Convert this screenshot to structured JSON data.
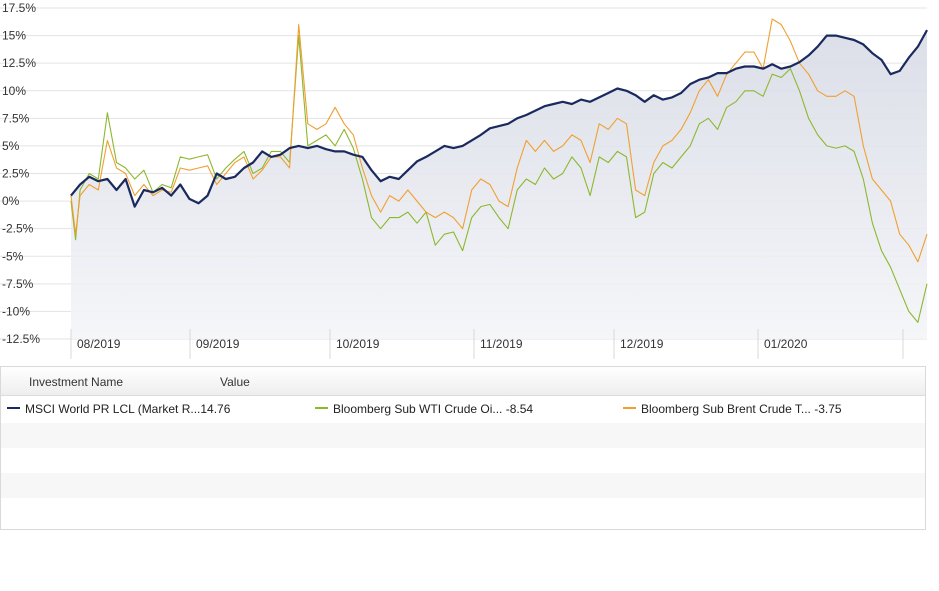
{
  "chart_data": {
    "type": "line",
    "x_ticks": [
      "08/2019",
      "09/2019",
      "10/2019",
      "11/2019",
      "12/2019",
      "01/2020"
    ],
    "y_ticks": [
      "17.5%",
      "15%",
      "12.5%",
      "10%",
      "7.5%",
      "5%",
      "2.5%",
      "0%",
      "-2.5%",
      "-5%",
      "-7.5%",
      "-10%",
      "-12.5%"
    ],
    "ylim": [
      -12.5,
      17.5
    ],
    "grid": true,
    "series": [
      {
        "name": "MSCI World PR LCL (Market R...",
        "color": "#1a2a5e",
        "area_fill": true,
        "points": [
          [
            0,
            0.5
          ],
          [
            2,
            1.5
          ],
          [
            4,
            2.2
          ],
          [
            6,
            1.8
          ],
          [
            8,
            2.0
          ],
          [
            10,
            1.0
          ],
          [
            12,
            2.0
          ],
          [
            14,
            -0.5
          ],
          [
            16,
            1.0
          ],
          [
            18,
            0.8
          ],
          [
            20,
            1.2
          ],
          [
            22,
            0.5
          ],
          [
            24,
            1.5
          ],
          [
            26,
            0.2
          ],
          [
            28,
            -0.2
          ],
          [
            30,
            0.5
          ],
          [
            32,
            2.5
          ],
          [
            34,
            2.0
          ],
          [
            36,
            2.2
          ],
          [
            38,
            3.0
          ],
          [
            40,
            3.5
          ],
          [
            42,
            4.5
          ],
          [
            44,
            4.0
          ],
          [
            46,
            4.2
          ],
          [
            48,
            4.8
          ],
          [
            50,
            5.0
          ],
          [
            52,
            4.8
          ],
          [
            54,
            5.0
          ],
          [
            56,
            4.7
          ],
          [
            58,
            4.5
          ],
          [
            60,
            4.5
          ],
          [
            62,
            4.2
          ],
          [
            64,
            4.0
          ],
          [
            66,
            2.8
          ],
          [
            68,
            1.8
          ],
          [
            70,
            2.2
          ],
          [
            72,
            2.0
          ],
          [
            74,
            2.8
          ],
          [
            76,
            3.6
          ],
          [
            78,
            4.0
          ],
          [
            80,
            4.5
          ],
          [
            82,
            5.0
          ],
          [
            84,
            4.8
          ],
          [
            86,
            5.0
          ],
          [
            88,
            5.5
          ],
          [
            90,
            6.0
          ],
          [
            92,
            6.6
          ],
          [
            94,
            6.8
          ],
          [
            96,
            7.0
          ],
          [
            98,
            7.5
          ],
          [
            100,
            7.8
          ],
          [
            102,
            8.2
          ],
          [
            104,
            8.6
          ],
          [
            106,
            8.8
          ],
          [
            108,
            9.0
          ],
          [
            110,
            8.8
          ],
          [
            112,
            9.2
          ],
          [
            114,
            9.0
          ],
          [
            116,
            9.4
          ],
          [
            118,
            9.8
          ],
          [
            120,
            10.2
          ],
          [
            122,
            10.0
          ],
          [
            124,
            9.6
          ],
          [
            126,
            9.0
          ],
          [
            128,
            9.6
          ],
          [
            130,
            9.2
          ],
          [
            132,
            9.4
          ],
          [
            134,
            9.8
          ],
          [
            136,
            10.6
          ],
          [
            138,
            11.0
          ],
          [
            140,
            11.2
          ],
          [
            142,
            11.6
          ],
          [
            144,
            11.6
          ],
          [
            146,
            12.0
          ],
          [
            148,
            12.2
          ],
          [
            150,
            12.2
          ],
          [
            152,
            12.0
          ],
          [
            154,
            12.4
          ],
          [
            156,
            12.0
          ],
          [
            158,
            12.2
          ],
          [
            160,
            12.6
          ],
          [
            162,
            13.2
          ],
          [
            164,
            14.0
          ],
          [
            166,
            15.0
          ],
          [
            168,
            15.0
          ],
          [
            170,
            14.8
          ],
          [
            172,
            14.6
          ],
          [
            174,
            14.2
          ],
          [
            176,
            13.4
          ],
          [
            178,
            12.8
          ],
          [
            180,
            11.5
          ],
          [
            182,
            11.8
          ],
          [
            184,
            13.0
          ],
          [
            186,
            14.0
          ],
          [
            188,
            15.5
          ]
        ]
      },
      {
        "name": "Bloomberg Sub WTI Crude Oi...",
        "color": "#8cb82e",
        "area_fill": false,
        "points": [
          [
            0,
            0
          ],
          [
            1,
            -3.5
          ],
          [
            2,
            1.0
          ],
          [
            4,
            2.5
          ],
          [
            6,
            2.0
          ],
          [
            8,
            8.0
          ],
          [
            10,
            3.5
          ],
          [
            12,
            3.0
          ],
          [
            14,
            2.0
          ],
          [
            16,
            2.8
          ],
          [
            18,
            0.8
          ],
          [
            20,
            1.5
          ],
          [
            22,
            1.2
          ],
          [
            24,
            4.0
          ],
          [
            26,
            3.8
          ],
          [
            28,
            4.0
          ],
          [
            30,
            4.2
          ],
          [
            32,
            2.0
          ],
          [
            34,
            3.0
          ],
          [
            36,
            3.8
          ],
          [
            38,
            4.5
          ],
          [
            40,
            2.5
          ],
          [
            42,
            3.0
          ],
          [
            44,
            4.5
          ],
          [
            46,
            4.5
          ],
          [
            48,
            3.5
          ],
          [
            50,
            15.0
          ],
          [
            52,
            5.0
          ],
          [
            54,
            5.5
          ],
          [
            56,
            6.0
          ],
          [
            58,
            5.0
          ],
          [
            60,
            6.5
          ],
          [
            62,
            4.8
          ],
          [
            64,
            2.0
          ],
          [
            66,
            -1.5
          ],
          [
            68,
            -2.5
          ],
          [
            70,
            -1.5
          ],
          [
            72,
            -1.5
          ],
          [
            74,
            -1.0
          ],
          [
            76,
            -2.0
          ],
          [
            78,
            -1.0
          ],
          [
            80,
            -4.0
          ],
          [
            82,
            -3.0
          ],
          [
            84,
            -2.8
          ],
          [
            86,
            -4.5
          ],
          [
            88,
            -1.5
          ],
          [
            90,
            -0.5
          ],
          [
            92,
            -0.3
          ],
          [
            94,
            -1.5
          ],
          [
            96,
            -2.5
          ],
          [
            98,
            1.0
          ],
          [
            100,
            2.0
          ],
          [
            102,
            1.5
          ],
          [
            104,
            3.0
          ],
          [
            106,
            2.0
          ],
          [
            108,
            2.5
          ],
          [
            110,
            4.0
          ],
          [
            112,
            3.0
          ],
          [
            114,
            0.5
          ],
          [
            116,
            4.0
          ],
          [
            118,
            3.5
          ],
          [
            120,
            4.5
          ],
          [
            122,
            4.0
          ],
          [
            124,
            -1.5
          ],
          [
            126,
            -1.0
          ],
          [
            128,
            2.5
          ],
          [
            130,
            3.5
          ],
          [
            132,
            3.0
          ],
          [
            134,
            4.0
          ],
          [
            136,
            5.0
          ],
          [
            138,
            7.0
          ],
          [
            140,
            7.5
          ],
          [
            142,
            6.5
          ],
          [
            144,
            8.5
          ],
          [
            146,
            9.0
          ],
          [
            148,
            10.0
          ],
          [
            150,
            10.0
          ],
          [
            152,
            9.5
          ],
          [
            154,
            11.5
          ],
          [
            156,
            11.2
          ],
          [
            158,
            12.0
          ],
          [
            160,
            10.0
          ],
          [
            162,
            7.5
          ],
          [
            164,
            6.0
          ],
          [
            166,
            5.0
          ],
          [
            168,
            4.8
          ],
          [
            170,
            5.0
          ],
          [
            172,
            4.5
          ],
          [
            174,
            2.0
          ],
          [
            176,
            -2.0
          ],
          [
            178,
            -4.5
          ],
          [
            180,
            -6.0
          ],
          [
            182,
            -8.0
          ],
          [
            184,
            -10.0
          ],
          [
            186,
            -11.0
          ],
          [
            188,
            -7.5
          ]
        ]
      },
      {
        "name": "Bloomberg Sub Brent Crude T...",
        "color": "#f0a030",
        "area_fill": false,
        "points": [
          [
            0,
            0.5
          ],
          [
            1,
            -3.0
          ],
          [
            2,
            0.5
          ],
          [
            4,
            1.5
          ],
          [
            6,
            1.0
          ],
          [
            8,
            5.5
          ],
          [
            10,
            3.0
          ],
          [
            12,
            2.5
          ],
          [
            14,
            0.5
          ],
          [
            16,
            1.5
          ],
          [
            18,
            0.5
          ],
          [
            20,
            1.0
          ],
          [
            22,
            0.8
          ],
          [
            24,
            3.0
          ],
          [
            26,
            2.8
          ],
          [
            28,
            3.0
          ],
          [
            30,
            3.2
          ],
          [
            32,
            1.5
          ],
          [
            34,
            2.5
          ],
          [
            36,
            3.5
          ],
          [
            38,
            4.0
          ],
          [
            40,
            2.0
          ],
          [
            42,
            2.8
          ],
          [
            44,
            4.0
          ],
          [
            46,
            4.0
          ],
          [
            48,
            3.0
          ],
          [
            50,
            16.0
          ],
          [
            52,
            7.0
          ],
          [
            54,
            6.5
          ],
          [
            56,
            7.0
          ],
          [
            58,
            8.5
          ],
          [
            60,
            7.0
          ],
          [
            62,
            6.0
          ],
          [
            64,
            3.0
          ],
          [
            66,
            0.5
          ],
          [
            68,
            -1.0
          ],
          [
            70,
            0.5
          ],
          [
            72,
            0.0
          ],
          [
            74,
            1.0
          ],
          [
            76,
            0.0
          ],
          [
            78,
            -1.0
          ],
          [
            80,
            -1.5
          ],
          [
            82,
            -1.0
          ],
          [
            84,
            -1.5
          ],
          [
            86,
            -2.5
          ],
          [
            88,
            1.0
          ],
          [
            90,
            2.0
          ],
          [
            92,
            1.5
          ],
          [
            94,
            0.0
          ],
          [
            96,
            -0.5
          ],
          [
            98,
            3.0
          ],
          [
            100,
            5.5
          ],
          [
            102,
            4.5
          ],
          [
            104,
            5.5
          ],
          [
            106,
            4.5
          ],
          [
            108,
            5.0
          ],
          [
            110,
            6.0
          ],
          [
            112,
            5.5
          ],
          [
            114,
            3.5
          ],
          [
            116,
            7.0
          ],
          [
            118,
            6.5
          ],
          [
            120,
            7.5
          ],
          [
            122,
            7.0
          ],
          [
            124,
            1.0
          ],
          [
            126,
            0.5
          ],
          [
            128,
            3.5
          ],
          [
            130,
            5.0
          ],
          [
            132,
            5.5
          ],
          [
            134,
            6.5
          ],
          [
            136,
            8.0
          ],
          [
            138,
            10.0
          ],
          [
            140,
            11.0
          ],
          [
            142,
            9.5
          ],
          [
            144,
            11.5
          ],
          [
            146,
            12.5
          ],
          [
            148,
            13.5
          ],
          [
            150,
            13.5
          ],
          [
            152,
            12.0
          ],
          [
            154,
            16.5
          ],
          [
            156,
            16.0
          ],
          [
            158,
            14.5
          ],
          [
            160,
            12.5
          ],
          [
            162,
            11.5
          ],
          [
            164,
            10.0
          ],
          [
            166,
            9.5
          ],
          [
            168,
            9.5
          ],
          [
            170,
            10.0
          ],
          [
            172,
            9.5
          ],
          [
            174,
            5.0
          ],
          [
            176,
            2.0
          ],
          [
            178,
            1.0
          ],
          [
            180,
            0.0
          ],
          [
            182,
            -3.0
          ],
          [
            184,
            -4.0
          ],
          [
            186,
            -5.5
          ],
          [
            188,
            -3.0
          ]
        ]
      }
    ]
  },
  "legend": {
    "header_name": "Investment Name",
    "header_value": "Value",
    "items": [
      {
        "name": "MSCI World PR LCL (Market R...",
        "value": "14.76",
        "color": "#1a2a5e"
      },
      {
        "name": "Bloomberg Sub WTI Crude Oi...",
        "value": "-8.54",
        "color": "#8cb82e"
      },
      {
        "name": "Bloomberg Sub Brent Crude T...",
        "value": "-3.75",
        "color": "#f0a030"
      }
    ]
  }
}
